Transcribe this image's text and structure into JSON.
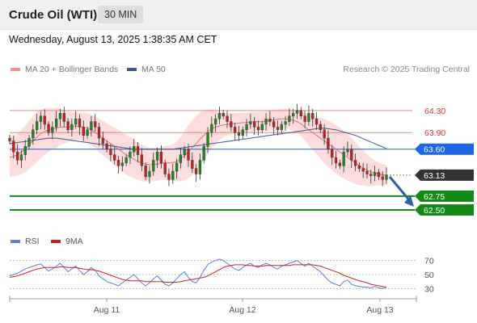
{
  "header": {
    "title": "Crude Oil (WTI)",
    "timeframe": "30 MIN"
  },
  "date_text": "Wednesday, August 13, 2025 1:38:35 AM CET",
  "legend": {
    "ma20": {
      "label": "MA 20 + Bollinger Bands",
      "color": "#f0908f"
    },
    "ma50": {
      "label": "MA 50",
      "color": "#3a5a8c"
    },
    "credit": "Research © 2025 Trading Central"
  },
  "rsi_legend": {
    "rsi": {
      "label": "RSI",
      "color": "#5b7fd4"
    },
    "ma9": {
      "label": "9MA",
      "color": "#cc1f1f"
    }
  },
  "chart_data": [
    {
      "type": "candlestick",
      "ylim": [
        62.28,
        64.62
      ],
      "x_ticks": [
        "Aug 11",
        "Aug 12",
        "Aug 13"
      ],
      "levels": [
        {
          "value": 64.3,
          "label": "64.30",
          "style": "resistance",
          "color": "#e48888"
        },
        {
          "value": 63.9,
          "label": "63.90",
          "style": "resistance",
          "color": "#e48888"
        },
        {
          "value": 63.6,
          "label": "63.60",
          "style": "pivot",
          "color": "#1a66e0"
        },
        {
          "value": 63.13,
          "label": "63.13",
          "style": "last",
          "color": "#333333"
        },
        {
          "value": 62.75,
          "label": "62.75",
          "style": "support",
          "color": "#138a13"
        },
        {
          "value": 62.5,
          "label": "62.50",
          "style": "support",
          "color": "#138a13"
        }
      ],
      "close_series": [
        63.75,
        63.55,
        63.4,
        63.5,
        63.65,
        63.8,
        63.95,
        64.1,
        64.2,
        64.05,
        63.9,
        64.0,
        64.15,
        64.25,
        64.1,
        63.95,
        64.05,
        64.15,
        64.0,
        63.85,
        63.95,
        64.1,
        64.0,
        63.8,
        63.7,
        63.6,
        63.5,
        63.4,
        63.3,
        63.35,
        63.45,
        63.55,
        63.65,
        63.5,
        63.3,
        63.1,
        63.2,
        63.4,
        63.55,
        63.35,
        63.15,
        63.05,
        63.2,
        63.35,
        63.5,
        63.6,
        63.4,
        63.25,
        63.15,
        63.4,
        63.65,
        63.9,
        64.05,
        64.15,
        64.25,
        64.2,
        64.1,
        64.0,
        63.9,
        63.85,
        63.95,
        64.05,
        64.1,
        64.0,
        63.95,
        64.05,
        64.15,
        64.1,
        64.0,
        63.95,
        64.05,
        64.1,
        64.2,
        64.25,
        64.3,
        64.2,
        64.1,
        64.25,
        64.15,
        64.05,
        63.95,
        63.8,
        63.6,
        63.45,
        63.35,
        63.3,
        63.55,
        63.6,
        63.4,
        63.3,
        63.25,
        63.2,
        63.15,
        63.12,
        63.18,
        63.1,
        63.05,
        63.13
      ],
      "ma20": [
        63.45,
        63.47,
        63.5,
        63.55,
        63.6,
        63.68,
        63.75,
        63.82,
        63.88,
        63.92,
        63.95,
        63.97,
        63.98,
        64.0,
        64.0,
        64.0,
        64.01,
        64.02,
        64.01,
        64.0,
        63.98,
        63.95,
        63.9,
        63.85,
        63.8,
        63.75,
        63.7,
        63.65,
        63.6,
        63.55,
        63.5,
        63.46,
        63.42,
        63.38,
        63.35,
        63.33,
        63.32,
        63.32,
        63.33,
        63.34,
        63.35,
        63.35,
        63.36,
        63.38,
        63.42,
        63.48,
        63.55,
        63.63,
        63.7,
        63.78,
        63.85,
        63.92,
        63.97,
        64.0,
        64.02,
        64.04,
        64.05,
        64.06,
        64.07,
        64.07,
        64.08,
        64.08,
        64.09,
        64.1,
        64.1,
        64.1,
        64.11,
        64.12,
        64.13,
        64.14,
        64.15,
        64.15,
        64.14,
        64.12,
        64.1,
        64.06,
        64.0,
        63.95,
        63.9,
        63.85,
        63.8,
        63.75,
        63.7,
        63.65,
        63.6,
        63.55,
        63.5,
        63.45,
        63.4,
        63.35,
        63.3,
        63.26,
        63.22,
        63.19,
        63.17,
        63.15,
        63.14,
        63.13
      ],
      "bb_width": [
        0.35,
        0.36,
        0.38,
        0.4,
        0.42,
        0.44,
        0.45,
        0.45,
        0.44,
        0.42,
        0.4,
        0.38,
        0.36,
        0.33,
        0.3,
        0.28,
        0.26,
        0.25,
        0.25,
        0.26,
        0.27,
        0.28,
        0.29,
        0.3,
        0.31,
        0.32,
        0.33,
        0.34,
        0.35,
        0.36,
        0.36,
        0.36,
        0.35,
        0.34,
        0.33,
        0.32,
        0.31,
        0.3,
        0.3,
        0.3,
        0.31,
        0.32,
        0.33,
        0.36,
        0.4,
        0.45,
        0.48,
        0.5,
        0.5,
        0.48,
        0.45,
        0.4,
        0.35,
        0.3,
        0.26,
        0.22,
        0.2,
        0.19,
        0.18,
        0.18,
        0.18,
        0.18,
        0.18,
        0.18,
        0.18,
        0.18,
        0.18,
        0.18,
        0.18,
        0.18,
        0.18,
        0.18,
        0.18,
        0.19,
        0.2,
        0.22,
        0.25,
        0.28,
        0.31,
        0.34,
        0.37,
        0.4,
        0.42,
        0.43,
        0.44,
        0.44,
        0.43,
        0.42,
        0.4,
        0.38,
        0.35,
        0.32,
        0.29,
        0.26,
        0.23,
        0.21,
        0.19,
        0.18
      ],
      "ma50": [
        63.7,
        63.71,
        63.72,
        63.73,
        63.74,
        63.75,
        63.76,
        63.77,
        63.78,
        63.79,
        63.8,
        63.8,
        63.8,
        63.79,
        63.78,
        63.77,
        63.76,
        63.75,
        63.74,
        63.73,
        63.72,
        63.71,
        63.7,
        63.69,
        63.68,
        63.67,
        63.66,
        63.65,
        63.64,
        63.63,
        63.62,
        63.61,
        63.6,
        63.6,
        63.6,
        63.6,
        63.6,
        63.6,
        63.6,
        63.6,
        63.6,
        63.6,
        63.6,
        63.61,
        63.62,
        63.63,
        63.64,
        63.65,
        63.66,
        63.67,
        63.68,
        63.69,
        63.7,
        63.71,
        63.72,
        63.73,
        63.74,
        63.75,
        63.76,
        63.77,
        63.78,
        63.79,
        63.8,
        63.81,
        63.82,
        63.83,
        63.84,
        63.85,
        63.86,
        63.87,
        63.88,
        63.89,
        63.9,
        63.91,
        63.92,
        63.93,
        63.94,
        63.95,
        63.96,
        63.97,
        63.98,
        63.98,
        63.97,
        63.96,
        63.95,
        63.93,
        63.91,
        63.89,
        63.87,
        63.85,
        63.82,
        63.79,
        63.76,
        63.73,
        63.7,
        63.67,
        63.64,
        63.61
      ]
    },
    {
      "type": "line",
      "ylim": [
        20,
        80
      ],
      "y_ticks": [
        "70",
        "50",
        "30"
      ],
      "series": [
        {
          "name": "RSI",
          "values": [
            48,
            50,
            52,
            55,
            58,
            60,
            62,
            64,
            65,
            60,
            55,
            58,
            62,
            66,
            60,
            54,
            58,
            62,
            56,
            50,
            54,
            60,
            56,
            48,
            44,
            40,
            38,
            36,
            34,
            38,
            42,
            46,
            50,
            44,
            38,
            34,
            38,
            44,
            48,
            42,
            36,
            34,
            38,
            44,
            50,
            54,
            46,
            40,
            38,
            46,
            56,
            64,
            68,
            70,
            72,
            70,
            66,
            62,
            58,
            56,
            60,
            64,
            66,
            62,
            60,
            64,
            66,
            64,
            60,
            58,
            62,
            64,
            66,
            68,
            70,
            66,
            62,
            66,
            62,
            58,
            54,
            48,
            42,
            38,
            36,
            34,
            40,
            42,
            36,
            34,
            33,
            32,
            32,
            31,
            33,
            31,
            30,
            32
          ]
        },
        {
          "name": "9MA",
          "values": [
            46,
            47,
            48,
            50,
            52,
            54,
            56,
            58,
            59,
            60,
            60,
            60,
            60,
            61,
            61,
            60,
            60,
            60,
            59,
            58,
            57,
            57,
            56,
            55,
            53,
            51,
            49,
            47,
            45,
            43,
            42,
            41,
            41,
            41,
            41,
            40,
            40,
            40,
            40,
            40,
            39,
            39,
            39,
            39,
            40,
            41,
            42,
            43,
            44,
            45,
            46,
            48,
            51,
            54,
            57,
            60,
            62,
            63,
            64,
            64,
            64,
            63,
            63,
            62,
            62,
            62,
            63,
            63,
            63,
            63,
            63,
            63,
            63,
            64,
            64,
            64,
            64,
            64,
            64,
            63,
            62,
            60,
            58,
            56,
            54,
            52,
            49,
            47,
            45,
            43,
            41,
            40,
            38,
            36,
            35,
            34,
            33,
            32
          ]
        }
      ]
    }
  ]
}
